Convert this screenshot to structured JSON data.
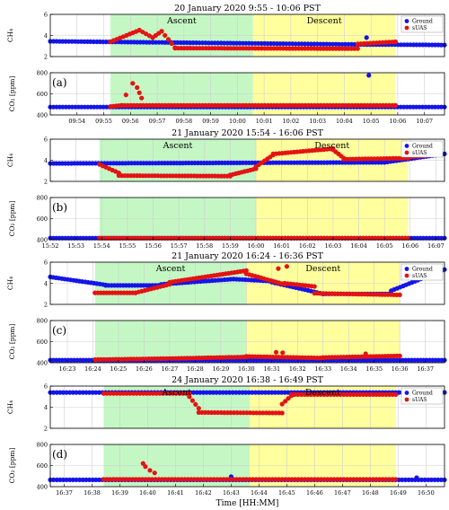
{
  "figure": {
    "xlabel": "Time [HH:MM]",
    "ground_color": "#1515e8",
    "suas_color": "#e41313",
    "ascent_color": "#c4f7c4",
    "descent_color": "#ffff9e"
  },
  "chart_data": [
    {
      "id": "a",
      "type": "scatter",
      "title": "20 January 2020 9:55 - 10:06 PST",
      "panel_label": "(a)",
      "phase_labels": [
        "Ascent",
        "Descent"
      ],
      "legend": [
        "Ground",
        "sUAS"
      ],
      "legend_position": "top-right",
      "time_start": "09:53:00",
      "time_end": "10:07:45",
      "ascent": [
        "09:55:15",
        "10:00:35"
      ],
      "descent": [
        "10:00:35",
        "10:05:55"
      ],
      "xticks": [
        "09:54",
        "09:55",
        "09:56",
        "09:57",
        "09:58",
        "09:59",
        "10:00",
        "10:01",
        "10:02",
        "10:03",
        "10:04",
        "10:05",
        "10:06",
        "10:07"
      ],
      "ch4": {
        "ylabel": "CH₄",
        "ylim": [
          2,
          6
        ],
        "yticks": [
          "2",
          "4",
          "6"
        ],
        "ground": {
          "segments": [
            {
              "start": "09:53:00",
              "end": "10:04:30",
              "y0": 3.45,
              "y1": 3.15
            },
            {
              "start": "10:04:30",
              "end": "10:07:45",
              "y0": 3.15,
              "y1": 3.1
            }
          ],
          "spikes": [
            {
              "t": "10:04:50",
              "v": 3.8
            }
          ]
        },
        "suas": {
          "segments": [
            {
              "start": "09:55:15",
              "end": "09:56:20",
              "y0": 3.4,
              "y1": 4.5
            },
            {
              "start": "09:56:20",
              "end": "09:56:50",
              "y0": 4.5,
              "y1": 3.8
            },
            {
              "start": "09:56:50",
              "end": "09:57:10",
              "y0": 3.8,
              "y1": 4.4
            },
            {
              "start": "09:57:10",
              "end": "09:57:40",
              "y0": 4.4,
              "y1": 2.85
            },
            {
              "start": "09:57:40",
              "end": "10:04:30",
              "y0": 2.8,
              "y1": 2.75
            },
            {
              "start": "10:04:30",
              "end": "10:05:55",
              "y0": 3.2,
              "y1": 3.4
            }
          ],
          "spikes": []
        }
      },
      "co2": {
        "ylabel": "CO₂",
        "ylim": [
          400,
          800
        ],
        "yticks": [
          "400",
          "600",
          "800"
        ],
        "ground": {
          "segments": [
            {
              "start": "09:53:00",
              "end": "10:07:45",
              "y0": 475,
              "y1": 475
            }
          ],
          "spikes": [
            {
              "t": "10:04:55",
              "v": 775
            }
          ]
        },
        "suas": {
          "segments": [
            {
              "start": "09:55:15",
              "end": "09:55:40",
              "y0": 480,
              "y1": 490
            },
            {
              "start": "09:55:40",
              "end": "10:05:55",
              "y0": 490,
              "y1": 490
            }
          ],
          "spikes": [
            {
              "t": "09:56:05",
              "v": 700
            },
            {
              "t": "09:56:15",
              "v": 660
            },
            {
              "t": "09:56:20",
              "v": 610
            },
            {
              "t": "09:55:50",
              "v": 590
            },
            {
              "t": "09:56:25",
              "v": 560
            }
          ]
        }
      }
    },
    {
      "id": "b",
      "type": "scatter",
      "title": "21 January 2020 15:54 - 16:06 PST",
      "panel_label": "(b)",
      "phase_labels": [
        "Ascent",
        "Descent"
      ],
      "legend": [
        "Ground",
        "sUAS"
      ],
      "legend_position": "top-right",
      "time_start": "15:52:00",
      "time_end": "16:07:20",
      "ascent": [
        "15:53:55",
        "16:00:00"
      ],
      "descent": [
        "16:00:00",
        "16:05:55"
      ],
      "xticks": [
        "15:52",
        "15:53",
        "15:54",
        "15:55",
        "15:56",
        "15:57",
        "15:58",
        "15:59",
        "16:00",
        "16:01",
        "16:02",
        "16:03",
        "16:04",
        "16:05",
        "16:06",
        "16:07"
      ],
      "ch4": {
        "ylabel": "CH₄",
        "ylim": [
          2,
          6
        ],
        "yticks": [
          "2",
          "4",
          "6"
        ],
        "ground": {
          "segments": [
            {
              "start": "15:52:00",
              "end": "16:05:00",
              "y0": 3.7,
              "y1": 3.8
            },
            {
              "start": "16:05:00",
              "end": "16:07:20",
              "y0": 3.8,
              "y1": 4.6
            }
          ],
          "spikes": []
        },
        "suas": {
          "segments": [
            {
              "start": "15:53:55",
              "end": "15:54:40",
              "y0": 3.6,
              "y1": 2.8
            },
            {
              "start": "15:54:40",
              "end": "15:59:00",
              "y0": 2.55,
              "y1": 2.5
            },
            {
              "start": "15:59:00",
              "end": "16:00:00",
              "y0": 2.6,
              "y1": 3.2
            },
            {
              "start": "16:00:00",
              "end": "16:00:40",
              "y0": 3.4,
              "y1": 4.5
            },
            {
              "start": "16:00:40",
              "end": "16:03:00",
              "y0": 4.6,
              "y1": 5.1
            },
            {
              "start": "16:03:00",
              "end": "16:03:25",
              "y0": 5.0,
              "y1": 4.2
            },
            {
              "start": "16:03:25",
              "end": "16:05:55",
              "y0": 4.1,
              "y1": 4.2
            },
            {
              "start": "16:05:55",
              "end": "16:06:40",
              "y0": 4.3,
              "y1": 4.45
            }
          ],
          "spikes": []
        }
      },
      "co2": {
        "ylabel": "CO₂",
        "ylim": [
          400,
          800
        ],
        "yticks": [
          "400",
          "600",
          "800"
        ],
        "ground": {
          "segments": [
            {
              "start": "15:52:00",
              "end": "16:07:20",
              "y0": 415,
              "y1": 415
            }
          ],
          "spikes": []
        },
        "suas": {
          "segments": [
            {
              "start": "15:53:55",
              "end": "16:05:55",
              "y0": 415,
              "y1": 415
            }
          ],
          "spikes": []
        }
      }
    },
    {
      "id": "c",
      "type": "scatter",
      "title": "21 January 2020 16:24 - 16:36 PST",
      "panel_label": "(c)",
      "phase_labels": [
        "Ascent",
        "Descent"
      ],
      "legend": [
        "Ground",
        "sUAS"
      ],
      "legend_position": "top-right",
      "time_start": "16:22:20",
      "time_end": "16:37:45",
      "ascent": [
        "16:24:05",
        "16:30:00"
      ],
      "descent": [
        "16:30:00",
        "16:36:00"
      ],
      "xticks": [
        "16:23",
        "16:24",
        "16:25",
        "16:26",
        "16:27",
        "16:28",
        "16:29",
        "16:30",
        "16:31",
        "16:32",
        "16:33",
        "16:34",
        "16:35",
        "16:36",
        "16:37"
      ],
      "ch4": {
        "ylabel": "CH₄",
        "ylim": [
          2,
          6
        ],
        "yticks": [
          "2",
          "4",
          "6"
        ],
        "ground": {
          "segments": [
            {
              "start": "16:22:20",
              "end": "16:24:30",
              "y0": 4.6,
              "y1": 3.85
            },
            {
              "start": "16:24:30",
              "end": "16:26:40",
              "y0": 3.8,
              "y1": 3.8
            },
            {
              "start": "16:26:40",
              "end": "16:29:30",
              "y0": 3.9,
              "y1": 4.4
            },
            {
              "start": "16:29:30",
              "end": "16:31:00",
              "y0": 4.4,
              "y1": 4.2
            },
            {
              "start": "16:31:00",
              "end": "16:33:00",
              "y0": 4.1,
              "y1": 3.0
            },
            {
              "start": "16:33:00",
              "end": "16:35:40",
              "y0": 3.0,
              "y1": 3.0
            },
            {
              "start": "16:35:40",
              "end": "16:37:45",
              "y0": 3.3,
              "y1": 5.3
            }
          ],
          "spikes": []
        },
        "suas": {
          "segments": [
            {
              "start": "16:24:05",
              "end": "16:25:40",
              "y0": 3.1,
              "y1": 3.1
            },
            {
              "start": "16:25:40",
              "end": "16:27:00",
              "y0": 3.1,
              "y1": 3.9
            },
            {
              "start": "16:27:00",
              "end": "16:30:00",
              "y0": 4.1,
              "y1": 5.2
            },
            {
              "start": "16:30:00",
              "end": "16:31:30",
              "y0": 4.9,
              "y1": 3.9
            },
            {
              "start": "16:31:30",
              "end": "16:32:40",
              "y0": 4.0,
              "y1": 3.7
            },
            {
              "start": "16:32:40",
              "end": "16:36:00",
              "y0": 3.05,
              "y1": 2.9
            }
          ],
          "spikes": [
            {
              "t": "16:31:15",
              "v": 5.4
            },
            {
              "t": "16:31:35",
              "v": 5.6
            }
          ]
        }
      },
      "co2": {
        "ylabel": "CO₂",
        "ylim": [
          400,
          800
        ],
        "yticks": [
          "400",
          "600",
          "800"
        ],
        "ground": {
          "segments": [
            {
              "start": "16:22:20",
              "end": "16:37:45",
              "y0": 425,
              "y1": 425
            }
          ],
          "spikes": []
        },
        "suas": {
          "segments": [
            {
              "start": "16:24:05",
              "end": "16:27:00",
              "y0": 430,
              "y1": 440
            },
            {
              "start": "16:27:00",
              "end": "16:30:00",
              "y0": 440,
              "y1": 455
            },
            {
              "start": "16:30:00",
              "end": "16:33:00",
              "y0": 460,
              "y1": 445
            },
            {
              "start": "16:33:00",
              "end": "16:36:00",
              "y0": 450,
              "y1": 465
            }
          ],
          "spikes": [
            {
              "t": "16:31:10",
              "v": 500
            },
            {
              "t": "16:31:25",
              "v": 495
            },
            {
              "t": "16:34:40",
              "v": 485
            }
          ]
        }
      }
    },
    {
      "id": "d",
      "type": "scatter",
      "title": "24 January 2020 16:38 - 16:49 PST",
      "panel_label": "(d)",
      "phase_labels": [
        "Ascent",
        "Descent"
      ],
      "legend": [
        "Ground",
        "sUAS"
      ],
      "legend_position": "top-right",
      "time_start": "16:36:30",
      "time_end": "16:50:40",
      "ascent": [
        "16:38:25",
        "16:43:40"
      ],
      "descent": [
        "16:43:40",
        "16:48:55"
      ],
      "xticks": [
        "16:37",
        "16:38",
        "16:39",
        "16:40",
        "16:41",
        "16:42",
        "16:43",
        "16:44",
        "16:45",
        "16:46",
        "16:47",
        "16:48",
        "16:49",
        "16:50"
      ],
      "ch4": {
        "ylabel": "CH₄",
        "ylim": [
          2,
          6
        ],
        "yticks": [
          "2",
          "4",
          "6"
        ],
        "ground": {
          "segments": [
            {
              "start": "16:36:30",
              "end": "16:50:40",
              "y0": 5.4,
              "y1": 5.4
            }
          ],
          "spikes": []
        },
        "suas": {
          "segments": [
            {
              "start": "16:38:25",
              "end": "16:41:30",
              "y0": 5.3,
              "y1": 5.3
            },
            {
              "start": "16:41:30",
              "end": "16:41:50",
              "y0": 5.0,
              "y1": 3.9
            },
            {
              "start": "16:41:50",
              "end": "16:44:50",
              "y0": 3.5,
              "y1": 3.45
            },
            {
              "start": "16:44:50",
              "end": "16:45:10",
              "y0": 4.3,
              "y1": 5.1
            },
            {
              "start": "16:45:10",
              "end": "16:48:55",
              "y0": 5.2,
              "y1": 5.2
            }
          ],
          "spikes": []
        }
      },
      "co2": {
        "ylabel": "CO₂",
        "ylim": [
          400,
          800
        ],
        "yticks": [
          "400",
          "600",
          "800"
        ],
        "ground": {
          "segments": [
            {
              "start": "16:36:30",
              "end": "16:50:40",
              "y0": 465,
              "y1": 465
            }
          ],
          "spikes": [
            {
              "t": "16:43:00",
              "v": 495
            },
            {
              "t": "16:49:40",
              "v": 485
            }
          ]
        },
        "suas": {
          "segments": [
            {
              "start": "16:38:25",
              "end": "16:48:55",
              "y0": 470,
              "y1": 470
            }
          ],
          "spikes": [
            {
              "t": "16:39:50",
              "v": 620
            },
            {
              "t": "16:39:55",
              "v": 590
            },
            {
              "t": "16:40:05",
              "v": 555
            },
            {
              "t": "16:40:15",
              "v": 530
            }
          ]
        }
      }
    }
  ]
}
